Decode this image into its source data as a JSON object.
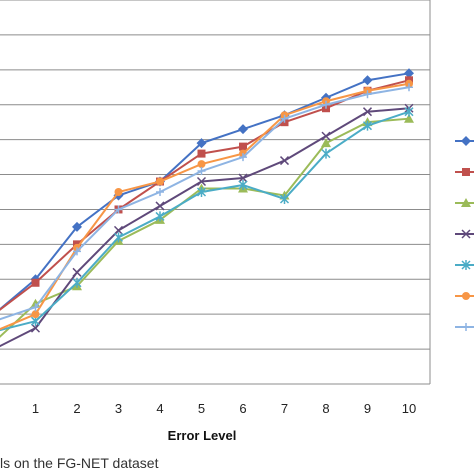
{
  "chart_data": {
    "type": "line",
    "title": "",
    "xlabel": "Error Level",
    "ylabel": "",
    "x": [
      0,
      1,
      2,
      3,
      4,
      5,
      6,
      7,
      8,
      9,
      10
    ],
    "xtick_labels": [
      "1",
      "2",
      "3",
      "4",
      "5",
      "6",
      "7",
      "8",
      "9",
      "10"
    ],
    "ylim": [
      0,
      11
    ],
    "grid": true,
    "legend_position": "right",
    "series": [
      {
        "color": "#4472C4",
        "marker": "diamond",
        "values": [
          2.0,
          3.0,
          4.5,
          5.4,
          5.8,
          6.9,
          7.3,
          7.7,
          8.2,
          8.7,
          8.9
        ]
      },
      {
        "color": "#C0504D",
        "marker": "square",
        "values": [
          2.0,
          2.9,
          4.0,
          5.0,
          5.8,
          6.6,
          6.8,
          7.5,
          7.9,
          8.4,
          8.7
        ]
      },
      {
        "color": "#9BBB59",
        "marker": "triangle",
        "values": [
          1.2,
          2.3,
          2.8,
          4.1,
          4.7,
          5.6,
          5.6,
          5.4,
          6.9,
          7.5,
          7.6
        ]
      },
      {
        "color": "#5F497A",
        "marker": "x",
        "values": [
          1.0,
          1.6,
          3.2,
          4.4,
          5.1,
          5.8,
          5.9,
          6.4,
          7.1,
          7.8,
          7.9
        ]
      },
      {
        "color": "#4BACC6",
        "marker": "star",
        "values": [
          1.5,
          1.8,
          2.9,
          4.2,
          4.8,
          5.5,
          5.7,
          5.3,
          6.6,
          7.4,
          7.8
        ]
      },
      {
        "color": "#F79646",
        "marker": "circle",
        "values": [
          1.5,
          2.0,
          3.9,
          5.5,
          5.8,
          6.3,
          6.6,
          7.7,
          8.1,
          8.4,
          8.6
        ]
      },
      {
        "color": "#8EB4E3",
        "marker": "plus",
        "values": [
          1.8,
          2.2,
          3.8,
          5.0,
          5.5,
          6.1,
          6.5,
          7.6,
          8.0,
          8.3,
          8.5
        ]
      }
    ]
  },
  "caption": "ls on the FG-NET dataset"
}
